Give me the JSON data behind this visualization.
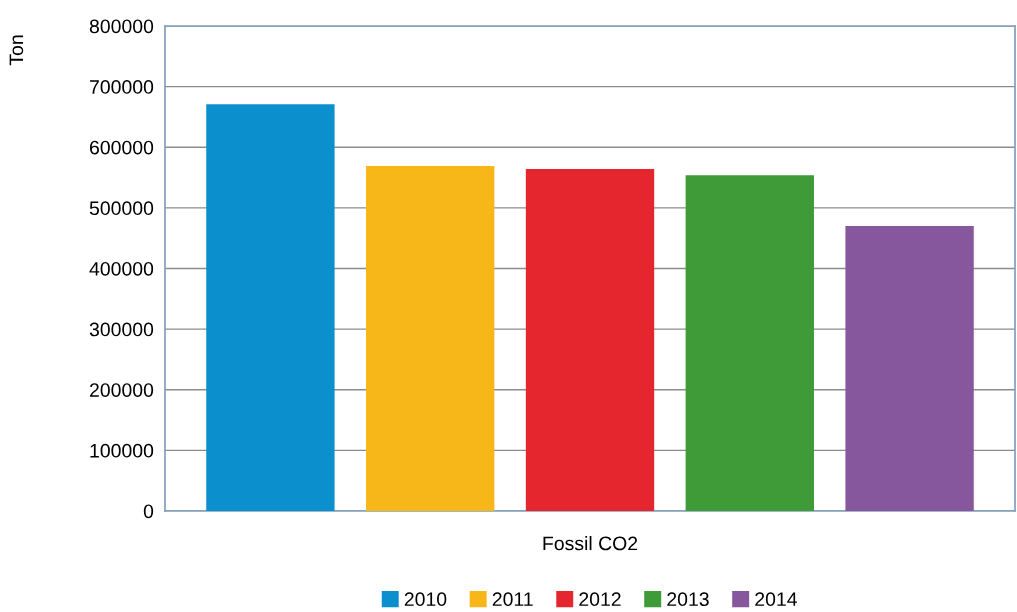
{
  "chart_data": {
    "type": "bar",
    "categories": [
      "Fossil CO2"
    ],
    "ylabel": "Ton",
    "series": [
      {
        "name": "2010",
        "color": "#0b8fcd",
        "values": [
          671000
        ]
      },
      {
        "name": "2011",
        "color": "#f8b718",
        "values": [
          569000
        ]
      },
      {
        "name": "2012",
        "color": "#e5262e",
        "values": [
          564000
        ]
      },
      {
        "name": "2013",
        "color": "#3e9b38",
        "values": [
          554000
        ]
      },
      {
        "name": "2014",
        "color": "#87579d",
        "values": [
          470000
        ]
      }
    ],
    "ylim": [
      0,
      800000
    ],
    "yticks": [
      0,
      100000,
      200000,
      300000,
      400000,
      500000,
      600000,
      700000,
      800000
    ],
    "grid": "y",
    "legend": "bottom"
  }
}
